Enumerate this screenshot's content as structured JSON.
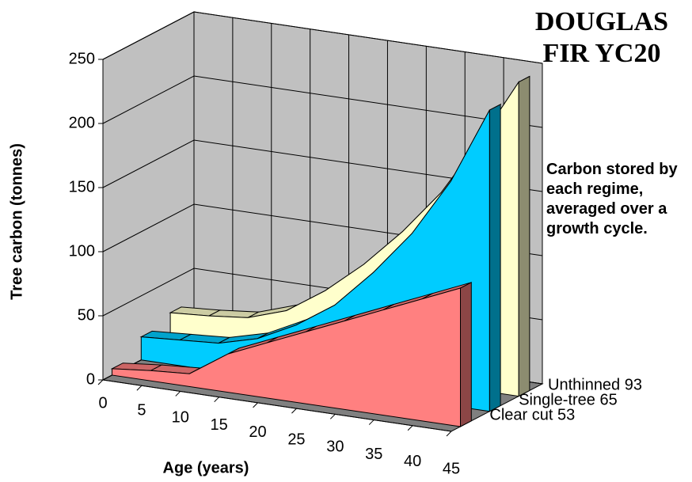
{
  "chart_data": {
    "type": "area3d",
    "title": "DOUGLAS FIR YC20",
    "annotation": "Carbon stored by each regime, averaged over a growth cycle.",
    "x_label": "Age (years)",
    "y_label": "Tree carbon (tonnes)",
    "x": [
      0,
      5,
      10,
      15,
      20,
      25,
      30,
      35,
      40,
      45
    ],
    "xlim": [
      0,
      45
    ],
    "ylim": [
      0,
      250
    ],
    "yticks": [
      0,
      50,
      100,
      150,
      200,
      250
    ],
    "grid": true,
    "series": [
      {
        "name": "Clear cut 53",
        "color": "#ff8080",
        "values": [
          5,
          8,
          10,
          30,
          43,
          56,
          69,
          82,
          95,
          108
        ]
      },
      {
        "name": "Single-tree 65",
        "color": "#00ccff",
        "values": [
          18,
          20,
          22,
          30,
          45,
          65,
          95,
          130,
          175,
          235
        ]
      },
      {
        "name": "Unthinned 93",
        "color": "#ffffcc",
        "values": [
          25,
          27,
          30,
          40,
          60,
          85,
          115,
          150,
          195,
          245
        ]
      }
    ]
  }
}
